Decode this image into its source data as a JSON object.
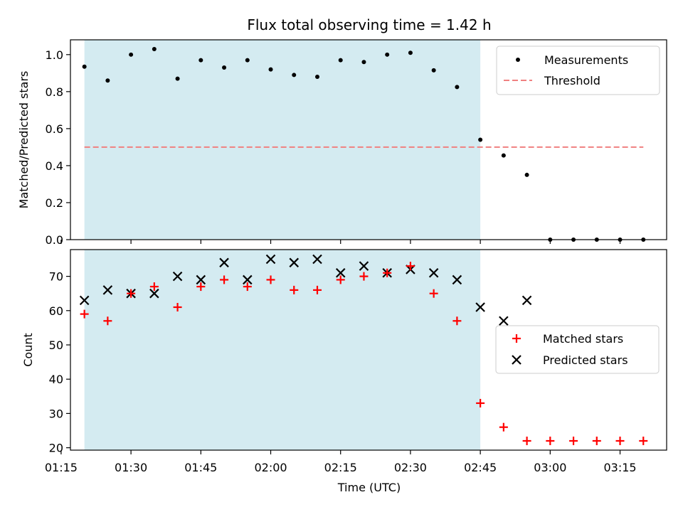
{
  "chart_data": [
    {
      "type": "scatter",
      "title": "Flux total observing time = 1.42 h",
      "xlabel": "",
      "ylabel": "Matched/Predicted stars",
      "ylim": [
        0,
        1.08
      ],
      "yticks": [
        "0.0",
        "0.2",
        "0.4",
        "0.6",
        "0.8",
        "1.0"
      ],
      "ytick_values": [
        0,
        0.2,
        0.4,
        0.6,
        0.8,
        1.0
      ],
      "xlim": [
        "01:17",
        "03:25"
      ],
      "observing_window": [
        "01:20",
        "02:45"
      ],
      "legend_position": "top-right",
      "series": [
        {
          "name": "Measurements",
          "marker": "dot",
          "color": "#000000",
          "points": [
            {
              "x": "01:20",
              "y": 0.935
            },
            {
              "x": "01:25",
              "y": 0.86
            },
            {
              "x": "01:30",
              "y": 1.0
            },
            {
              "x": "01:35",
              "y": 1.03
            },
            {
              "x": "01:40",
              "y": 0.87
            },
            {
              "x": "01:45",
              "y": 0.97
            },
            {
              "x": "01:50",
              "y": 0.93
            },
            {
              "x": "01:55",
              "y": 0.97
            },
            {
              "x": "02:00",
              "y": 0.92
            },
            {
              "x": "02:05",
              "y": 0.89
            },
            {
              "x": "02:10",
              "y": 0.88
            },
            {
              "x": "02:15",
              "y": 0.97
            },
            {
              "x": "02:20",
              "y": 0.96
            },
            {
              "x": "02:25",
              "y": 1.0
            },
            {
              "x": "02:30",
              "y": 1.01
            },
            {
              "x": "02:35",
              "y": 0.915
            },
            {
              "x": "02:40",
              "y": 0.825
            },
            {
              "x": "02:45",
              "y": 0.54
            },
            {
              "x": "02:50",
              "y": 0.455
            },
            {
              "x": "02:55",
              "y": 0.35
            },
            {
              "x": "03:00",
              "y": 0.0
            },
            {
              "x": "03:05",
              "y": 0.0
            },
            {
              "x": "03:10",
              "y": 0.0
            },
            {
              "x": "03:15",
              "y": 0.0
            },
            {
              "x": "03:20",
              "y": 0.0
            }
          ]
        },
        {
          "name": "Threshold",
          "marker": "dashed-line",
          "color": "#f08080",
          "points": [
            {
              "x": "01:20",
              "y": 0.5
            },
            {
              "x": "03:20",
              "y": 0.5
            }
          ]
        }
      ]
    },
    {
      "type": "scatter",
      "title": "",
      "xlabel": "Time (UTC)",
      "ylabel": "Count",
      "ylim": [
        19.3,
        77.8
      ],
      "yticks": [
        "20",
        "30",
        "40",
        "50",
        "60",
        "70"
      ],
      "ytick_values": [
        20,
        30,
        40,
        50,
        60,
        70
      ],
      "xlim": [
        "01:17",
        "03:25"
      ],
      "xticks": [
        "01:15",
        "01:30",
        "01:45",
        "02:00",
        "02:15",
        "02:30",
        "02:45",
        "03:00",
        "03:15"
      ],
      "observing_window": [
        "01:20",
        "02:45"
      ],
      "legend_position": "center-right",
      "series": [
        {
          "name": "Matched stars",
          "marker": "plus",
          "color": "#ff0000",
          "points": [
            {
              "x": "01:20",
              "y": 59
            },
            {
              "x": "01:25",
              "y": 57
            },
            {
              "x": "01:30",
              "y": 65
            },
            {
              "x": "01:35",
              "y": 67
            },
            {
              "x": "01:40",
              "y": 61
            },
            {
              "x": "01:45",
              "y": 67
            },
            {
              "x": "01:50",
              "y": 69
            },
            {
              "x": "01:55",
              "y": 67
            },
            {
              "x": "02:00",
              "y": 69
            },
            {
              "x": "02:05",
              "y": 66
            },
            {
              "x": "02:10",
              "y": 66
            },
            {
              "x": "02:15",
              "y": 69
            },
            {
              "x": "02:20",
              "y": 70
            },
            {
              "x": "02:25",
              "y": 71
            },
            {
              "x": "02:30",
              "y": 73
            },
            {
              "x": "02:35",
              "y": 65
            },
            {
              "x": "02:40",
              "y": 57
            },
            {
              "x": "02:45",
              "y": 33
            },
            {
              "x": "02:50",
              "y": 26
            },
            {
              "x": "02:55",
              "y": 22
            },
            {
              "x": "03:00",
              "y": 22
            },
            {
              "x": "03:05",
              "y": 22
            },
            {
              "x": "03:10",
              "y": 22
            },
            {
              "x": "03:15",
              "y": 22
            },
            {
              "x": "03:20",
              "y": 22
            }
          ]
        },
        {
          "name": "Predicted stars",
          "marker": "x",
          "color": "#000000",
          "points": [
            {
              "x": "01:20",
              "y": 63
            },
            {
              "x": "01:25",
              "y": 66
            },
            {
              "x": "01:30",
              "y": 65
            },
            {
              "x": "01:35",
              "y": 65
            },
            {
              "x": "01:40",
              "y": 70
            },
            {
              "x": "01:45",
              "y": 69
            },
            {
              "x": "01:50",
              "y": 74
            },
            {
              "x": "01:55",
              "y": 69
            },
            {
              "x": "02:00",
              "y": 75
            },
            {
              "x": "02:05",
              "y": 74
            },
            {
              "x": "02:10",
              "y": 75
            },
            {
              "x": "02:15",
              "y": 71
            },
            {
              "x": "02:20",
              "y": 73
            },
            {
              "x": "02:25",
              "y": 71
            },
            {
              "x": "02:30",
              "y": 72
            },
            {
              "x": "02:35",
              "y": 71
            },
            {
              "x": "02:40",
              "y": 69
            },
            {
              "x": "02:45",
              "y": 61
            },
            {
              "x": "02:50",
              "y": 57
            },
            {
              "x": "02:55",
              "y": 63
            }
          ]
        }
      ]
    }
  ],
  "colors": {
    "observing_window_fill": "#d4ebf1",
    "axes": "#000000"
  }
}
